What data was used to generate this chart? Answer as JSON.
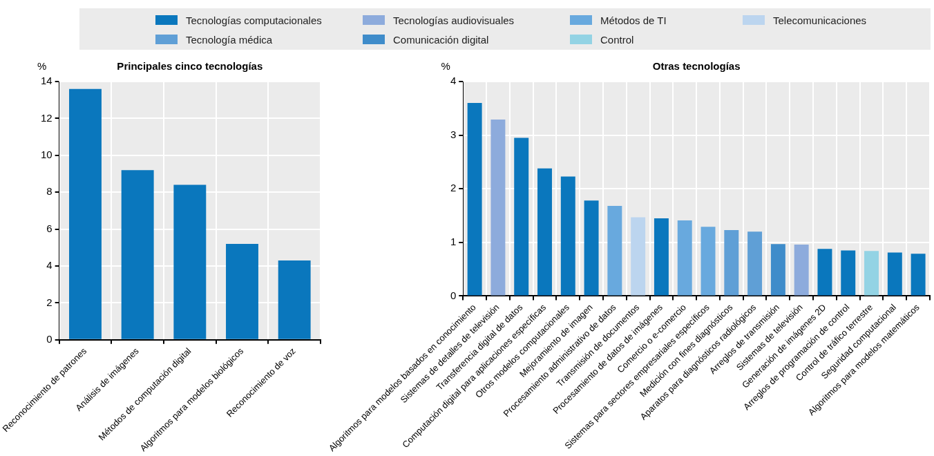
{
  "chart_data": [
    {
      "type": "bar",
      "title": "Principales cinco tecnologías",
      "ylabel": "%",
      "categories": [
        "Reconocimiento de patrones",
        "Análisis de imágenes",
        "Métodos de computación digital",
        "Algoritmos para modelos biológicos",
        "Reconocimiento de voz"
      ],
      "series": [
        {
          "name": "Tecnologías computacionales",
          "color": "#0a77bd",
          "values": [
            13.6,
            9.2,
            8.4,
            5.2,
            4.3
          ]
        }
      ],
      "ylim": [
        0,
        14
      ],
      "yticks": [
        0,
        2,
        4,
        6,
        8,
        10,
        12,
        14
      ],
      "grid": true,
      "legend": "top"
    },
    {
      "type": "bar",
      "title": "Otras tecnologías",
      "ylabel": "%",
      "categories": [
        "Algoritmos para modelos basados en conocimiento",
        "Sistemas de detalles de televisión",
        "Transferencia digital de datos",
        "Computación digital para aplicaciones específicas",
        "Otros modelos computacionales",
        "Mejoramiento de imagen",
        "Procesamiento administrativo de datos",
        "Transmisión de documentos",
        "Procesamiento de datos de imágenes",
        "Comercio o e-comercio",
        "Sistemas para sectores empresariales específicos",
        "Medición con fines diagnósticos",
        "Aparatos para diagnósticos radiológicos",
        "Arreglos de transmisión",
        "Sistemas de televisión",
        "Generación de imágenes 2D",
        "Arreglos de programación de control",
        "Control de tráfico terrestre",
        "Seguridad computacional",
        "Algoritmos para modelos matemáticos"
      ],
      "series": [
        {
          "name": "Tecnologías computacionales",
          "color": "#0a77bd",
          "values": [
            3.6,
            null,
            2.95,
            2.38,
            2.23,
            1.78,
            null,
            null,
            1.45,
            null,
            null,
            null,
            null,
            null,
            null,
            0.88,
            0.85,
            null,
            0.81,
            0.79
          ]
        },
        {
          "name": "Tecnologías audiovisuales",
          "color": "#8dabdc",
          "values": [
            null,
            3.29,
            null,
            null,
            null,
            null,
            null,
            null,
            null,
            null,
            null,
            null,
            null,
            null,
            0.96,
            null,
            null,
            null,
            null,
            null
          ]
        },
        {
          "name": "Métodos de TI",
          "color": "#68a9de",
          "values": [
            null,
            null,
            null,
            null,
            null,
            null,
            1.68,
            null,
            null,
            1.41,
            1.29,
            null,
            null,
            null,
            null,
            null,
            null,
            null,
            null,
            null
          ]
        },
        {
          "name": "Telecomunicaciones",
          "color": "#bcd5ef",
          "values": [
            null,
            null,
            null,
            null,
            null,
            null,
            null,
            1.47,
            null,
            null,
            null,
            null,
            null,
            null,
            null,
            null,
            null,
            null,
            null,
            null
          ]
        },
        {
          "name": "Tecnología médica",
          "color": "#5f9fd6",
          "values": [
            null,
            null,
            null,
            null,
            null,
            null,
            null,
            null,
            null,
            null,
            null,
            1.23,
            1.2,
            null,
            null,
            null,
            null,
            null,
            null,
            null
          ]
        },
        {
          "name": "Comunicación digital",
          "color": "#3f8cca",
          "values": [
            null,
            null,
            null,
            null,
            null,
            null,
            null,
            null,
            null,
            null,
            null,
            null,
            null,
            0.97,
            null,
            null,
            null,
            null,
            null,
            null
          ]
        },
        {
          "name": "Control",
          "color": "#93d3e4",
          "values": [
            null,
            null,
            null,
            null,
            null,
            null,
            null,
            null,
            null,
            null,
            null,
            null,
            null,
            null,
            null,
            null,
            null,
            0.84,
            null,
            null
          ]
        }
      ],
      "ylim": [
        0,
        4
      ],
      "yticks": [
        0,
        1,
        2,
        3,
        4
      ],
      "grid": true,
      "legend": "top"
    }
  ]
}
